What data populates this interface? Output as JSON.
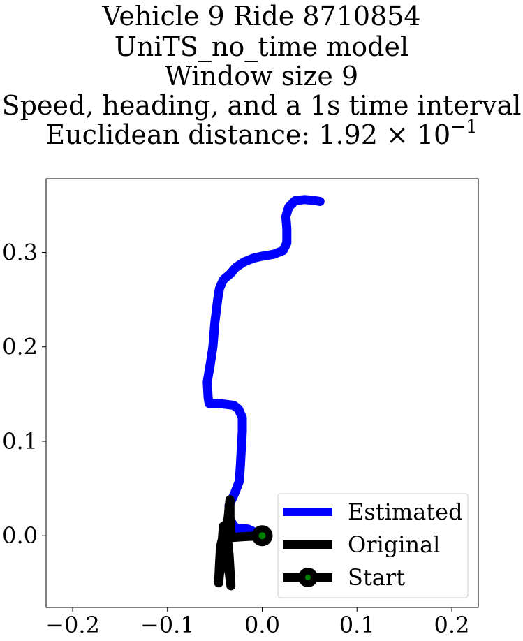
{
  "chart_data": {
    "type": "line",
    "title_lines": [
      "Vehicle 9 Ride 8710854",
      "UniTS_no_time model",
      "Window size 9",
      "Speed, heading, and a 1s time interval"
    ],
    "title_metric_prefix": "Euclidean distance: 1.92 × 10",
    "title_metric_exponent": "−1",
    "xlabel": "",
    "ylabel": "",
    "xlim": [
      -0.228,
      0.228
    ],
    "ylim": [
      -0.076,
      0.378
    ],
    "x_ticks": [
      -0.2,
      -0.1,
      0.0,
      0.1,
      0.2
    ],
    "x_tick_labels": [
      "−0.2",
      "−0.1",
      "0.0",
      "0.1",
      "0.2"
    ],
    "y_ticks": [
      0.0,
      0.1,
      0.2,
      0.3
    ],
    "y_tick_labels": [
      "0.0",
      "0.1",
      "0.2",
      "0.3"
    ],
    "grid": false,
    "legend_position": "lower-right",
    "series": [
      {
        "name": "Estimated",
        "color": "#0000ff",
        "points": [
          [
            0.0,
            0.0
          ],
          [
            -0.015,
            0.007
          ],
          [
            -0.028,
            0.008
          ],
          [
            -0.035,
            0.018
          ],
          [
            -0.035,
            0.032
          ],
          [
            -0.029,
            0.045
          ],
          [
            -0.024,
            0.058
          ],
          [
            -0.023,
            0.075
          ],
          [
            -0.022,
            0.092
          ],
          [
            -0.021,
            0.11
          ],
          [
            -0.021,
            0.125
          ],
          [
            -0.025,
            0.134
          ],
          [
            -0.03,
            0.138
          ],
          [
            -0.045,
            0.14
          ],
          [
            -0.056,
            0.14
          ],
          [
            -0.057,
            0.146
          ],
          [
            -0.058,
            0.163
          ],
          [
            -0.055,
            0.18
          ],
          [
            -0.052,
            0.2
          ],
          [
            -0.05,
            0.225
          ],
          [
            -0.047,
            0.25
          ],
          [
            -0.045,
            0.262
          ],
          [
            -0.041,
            0.271
          ],
          [
            -0.034,
            0.277
          ],
          [
            -0.028,
            0.284
          ],
          [
            -0.019,
            0.29
          ],
          [
            -0.009,
            0.294
          ],
          [
            0.0,
            0.296
          ],
          [
            0.012,
            0.298
          ],
          [
            0.022,
            0.302
          ],
          [
            0.026,
            0.31
          ],
          [
            0.026,
            0.325
          ],
          [
            0.025,
            0.338
          ],
          [
            0.028,
            0.348
          ],
          [
            0.035,
            0.355
          ],
          [
            0.045,
            0.356
          ],
          [
            0.055,
            0.355
          ],
          [
            0.061,
            0.354
          ]
        ]
      },
      {
        "name": "Original",
        "color": "#000000",
        "points": [
          [
            0.0,
            0.0
          ],
          [
            -0.02,
            -0.001
          ],
          [
            -0.033,
            -0.002
          ],
          [
            -0.034,
            0.02
          ],
          [
            -0.034,
            0.038
          ],
          [
            -0.036,
            0.018
          ],
          [
            -0.04,
            0.005
          ],
          [
            -0.044,
            -0.012
          ],
          [
            -0.045,
            -0.03
          ],
          [
            -0.046,
            -0.05
          ],
          [
            -0.043,
            -0.02
          ],
          [
            -0.041,
            0.01
          ],
          [
            -0.037,
            -0.015
          ],
          [
            -0.035,
            -0.038
          ],
          [
            -0.033,
            -0.053
          ],
          [
            -0.035,
            -0.02
          ],
          [
            -0.038,
            0.01
          ],
          [
            -0.042,
            -0.025
          ],
          [
            -0.046,
            -0.045
          ]
        ]
      }
    ],
    "start_point": {
      "name": "Start",
      "x": 0.0,
      "y": 0.0,
      "face_color": "#008000",
      "edge_color": "#000000"
    }
  }
}
